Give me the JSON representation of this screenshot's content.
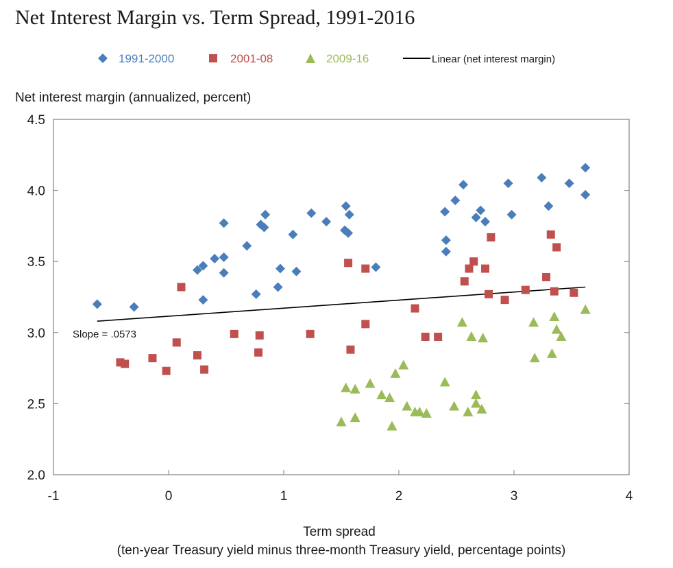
{
  "chart_data": {
    "type": "scatter",
    "title": "Net Interest Margin vs. Term Spread, 1991-2016",
    "ylabel": "Net interest margin (annualized, percent)",
    "xlabel": "Term spread",
    "xlabel_sub": "(ten-year Treasury yield minus three-month Treasury yield, percentage points)",
    "xlim": [
      -1,
      4
    ],
    "ylim": [
      2.0,
      4.5
    ],
    "x_ticks": [
      -1,
      0,
      1,
      2,
      3,
      4
    ],
    "x_tick_labels": [
      "-1",
      "0",
      "1",
      "2",
      "3",
      "4"
    ],
    "y_ticks": [
      2.0,
      2.5,
      3.0,
      3.5,
      4.0,
      4.5
    ],
    "y_tick_labels": [
      "2.0",
      "2.5",
      "3.0",
      "3.5",
      "4.0",
      "4.5"
    ],
    "annotation": "Slope = .0573",
    "legend_position": "top",
    "series": [
      {
        "name": "1991-2000",
        "marker": "diamond",
        "color": "#4a7ebb",
        "points": [
          [
            -0.62,
            3.2
          ],
          [
            -0.3,
            3.18
          ],
          [
            0.25,
            3.44
          ],
          [
            0.3,
            3.47
          ],
          [
            0.3,
            3.23
          ],
          [
            0.4,
            3.52
          ],
          [
            0.48,
            3.53
          ],
          [
            0.48,
            3.42
          ],
          [
            0.48,
            3.77
          ],
          [
            0.68,
            3.61
          ],
          [
            0.76,
            3.27
          ],
          [
            0.8,
            3.76
          ],
          [
            0.83,
            3.74
          ],
          [
            0.84,
            3.83
          ],
          [
            0.95,
            3.32
          ],
          [
            0.97,
            3.45
          ],
          [
            1.08,
            3.69
          ],
          [
            1.11,
            3.43
          ],
          [
            1.24,
            3.84
          ],
          [
            1.37,
            3.78
          ],
          [
            1.53,
            3.72
          ],
          [
            1.56,
            3.7
          ],
          [
            1.54,
            3.89
          ],
          [
            1.57,
            3.83
          ],
          [
            1.8,
            3.46
          ],
          [
            2.4,
            3.85
          ],
          [
            2.41,
            3.57
          ],
          [
            2.41,
            3.65
          ],
          [
            2.49,
            3.93
          ],
          [
            2.56,
            4.04
          ],
          [
            2.67,
            3.81
          ],
          [
            2.71,
            3.86
          ],
          [
            2.75,
            3.78
          ],
          [
            2.95,
            4.05
          ],
          [
            2.98,
            3.83
          ],
          [
            3.24,
            4.09
          ],
          [
            3.3,
            3.89
          ],
          [
            3.48,
            4.05
          ],
          [
            3.62,
            4.16
          ],
          [
            3.62,
            3.97
          ]
        ]
      },
      {
        "name": "2001-08",
        "marker": "square",
        "color": "#c0504d",
        "points": [
          [
            -0.42,
            2.79
          ],
          [
            -0.38,
            2.78
          ],
          [
            -0.14,
            2.82
          ],
          [
            -0.02,
            2.73
          ],
          [
            0.07,
            2.93
          ],
          [
            0.11,
            3.32
          ],
          [
            0.25,
            2.84
          ],
          [
            0.31,
            2.74
          ],
          [
            0.57,
            2.99
          ],
          [
            0.78,
            2.86
          ],
          [
            0.79,
            2.98
          ],
          [
            1.23,
            2.99
          ],
          [
            1.56,
            3.49
          ],
          [
            1.58,
            2.88
          ],
          [
            1.71,
            3.45
          ],
          [
            1.71,
            3.06
          ],
          [
            2.14,
            3.17
          ],
          [
            2.23,
            2.97
          ],
          [
            2.34,
            2.97
          ],
          [
            2.57,
            3.36
          ],
          [
            2.61,
            3.45
          ],
          [
            2.65,
            3.5
          ],
          [
            2.75,
            3.45
          ],
          [
            2.78,
            3.27
          ],
          [
            2.8,
            3.67
          ],
          [
            2.92,
            3.23
          ],
          [
            3.1,
            3.3
          ],
          [
            3.28,
            3.39
          ],
          [
            3.32,
            3.69
          ],
          [
            3.35,
            3.29
          ],
          [
            3.37,
            3.6
          ],
          [
            3.52,
            3.28
          ]
        ]
      },
      {
        "name": "2009-16",
        "marker": "triangle",
        "color": "#9bbb59",
        "points": [
          [
            1.5,
            2.37
          ],
          [
            1.54,
            2.61
          ],
          [
            1.62,
            2.6
          ],
          [
            1.62,
            2.4
          ],
          [
            1.75,
            2.64
          ],
          [
            1.85,
            2.56
          ],
          [
            1.92,
            2.54
          ],
          [
            1.94,
            2.34
          ],
          [
            1.97,
            2.71
          ],
          [
            2.04,
            2.77
          ],
          [
            2.07,
            2.48
          ],
          [
            2.14,
            2.44
          ],
          [
            2.18,
            2.44
          ],
          [
            2.24,
            2.43
          ],
          [
            2.4,
            2.65
          ],
          [
            2.48,
            2.48
          ],
          [
            2.55,
            3.07
          ],
          [
            2.6,
            2.44
          ],
          [
            2.63,
            2.97
          ],
          [
            2.67,
            2.56
          ],
          [
            2.67,
            2.5
          ],
          [
            2.72,
            2.46
          ],
          [
            2.73,
            2.96
          ],
          [
            3.17,
            3.07
          ],
          [
            3.18,
            2.82
          ],
          [
            3.33,
            2.85
          ],
          [
            3.35,
            3.11
          ],
          [
            3.37,
            3.02
          ],
          [
            3.41,
            2.97
          ],
          [
            3.62,
            3.16
          ]
        ]
      }
    ],
    "trendline": {
      "name": "Linear (net interest margin)",
      "color": "#000000",
      "x_range": [
        -0.62,
        3.62
      ],
      "y_range": [
        3.08,
        3.32
      ],
      "slope": 0.0573
    }
  }
}
